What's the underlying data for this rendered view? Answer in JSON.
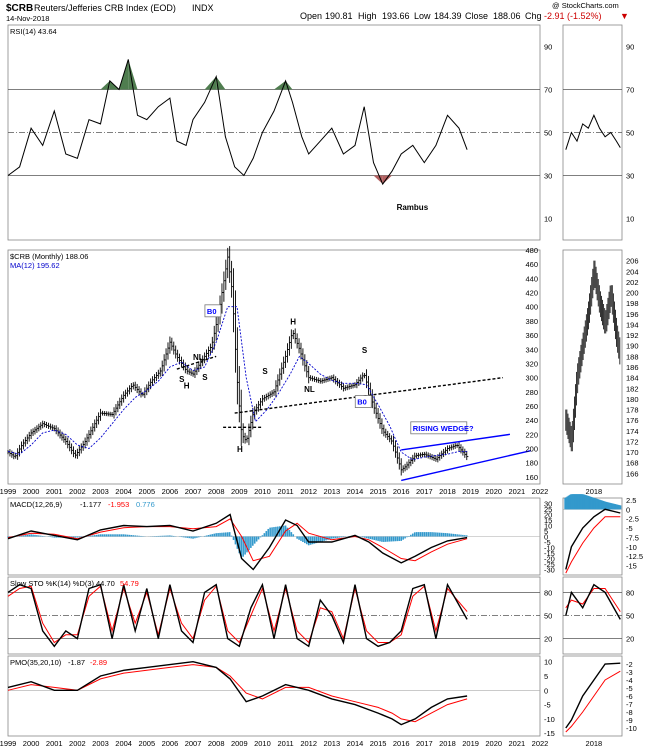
{
  "header": {
    "symbol": "$CRB",
    "name": "Reuters/Jefferies CRB Index (EOD)",
    "exchange": "INDX",
    "date": "14-Nov-2018",
    "open_label": "Open",
    "open": "190.81",
    "high_label": "High",
    "high": "193.66",
    "low_label": "Low",
    "low": "184.39",
    "close_label": "Close",
    "close": "188.06",
    "chg_label": "Chg",
    "chg": "-2.91 (-1.52%)",
    "chg_color": "#cc0000",
    "copyright": "@ StockCharts.com"
  },
  "colors": {
    "price": "#000000",
    "ma": "#0000cc",
    "macd_signal": "#ff0000",
    "histogram": "#3399cc",
    "rsi_overbought_fill": "#4f7d4f",
    "rsi_oversold_fill": "#b25f5f",
    "wedge": "#0000ff",
    "panel_border": "#888888"
  },
  "x_axis_years": [
    "1999",
    "2000",
    "2001",
    "2002",
    "2003",
    "2004",
    "2005",
    "2006",
    "2007",
    "2008",
    "2009",
    "2010",
    "2011",
    "2012",
    "2013",
    "2014",
    "2015",
    "2016",
    "2017",
    "2018",
    "2019",
    "2020",
    "2021",
    "2022"
  ],
  "right_x_axis_years": [
    "2018"
  ],
  "chart_data": [
    {
      "type": "line",
      "panel": "rsi",
      "legend": "RSI(14) 43.64",
      "ylim": [
        0,
        100
      ],
      "y_ticks": [
        10,
        30,
        50,
        70,
        90
      ],
      "reference_lines": [
        30,
        50,
        70
      ],
      "annotation": "Rambus",
      "x": [
        1999.0,
        1999.5,
        2000.0,
        2000.5,
        2001.0,
        2001.5,
        2002.0,
        2002.5,
        2003.0,
        2003.4,
        2003.8,
        2004.2,
        2004.6,
        2005.0,
        2005.5,
        2006.0,
        2006.3,
        2006.7,
        2007.0,
        2007.5,
        2008.0,
        2008.4,
        2008.8,
        2009.2,
        2009.6,
        2010.0,
        2010.5,
        2011.0,
        2011.3,
        2011.7,
        2012.0,
        2012.5,
        2013.0,
        2013.5,
        2014.0,
        2014.4,
        2014.8,
        2015.2,
        2015.6,
        2016.0,
        2016.5,
        2017.0,
        2017.5,
        2018.0,
        2018.5,
        2018.85
      ],
      "y": [
        30,
        34,
        52,
        44,
        60,
        40,
        38,
        56,
        54,
        74,
        70,
        84,
        58,
        56,
        62,
        66,
        46,
        44,
        56,
        64,
        76,
        48,
        34,
        30,
        38,
        50,
        60,
        74,
        64,
        48,
        40,
        46,
        52,
        40,
        44,
        62,
        36,
        26,
        32,
        40,
        44,
        36,
        44,
        58,
        52,
        42
      ]
    },
    {
      "type": "line",
      "panel": "rsi-right",
      "ylim": [
        0,
        100
      ],
      "y_ticks": [
        10,
        30,
        50,
        70,
        90
      ],
      "x": [
        2017.9,
        2018.0,
        2018.1,
        2018.2,
        2018.3,
        2018.4,
        2018.5,
        2018.6,
        2018.7,
        2018.8,
        2018.87
      ],
      "y": [
        42,
        50,
        46,
        54,
        52,
        58,
        52,
        48,
        50,
        46,
        43
      ]
    },
    {
      "type": "line",
      "panel": "price",
      "legend": "$CRB (Monthly) 188.06",
      "ma_legend": "MA(12) 195.62",
      "ylim": [
        150,
        480
      ],
      "y_ticks": [
        160,
        180,
        200,
        220,
        240,
        260,
        280,
        300,
        320,
        340,
        360,
        380,
        400,
        420,
        440,
        460,
        480
      ],
      "x": [
        1999.0,
        1999.3,
        1999.6,
        2000.0,
        2000.5,
        2001.0,
        2001.5,
        2001.9,
        2002.3,
        2002.7,
        2003.0,
        2003.5,
        2004.0,
        2004.4,
        2004.8,
        2005.2,
        2005.6,
        2006.0,
        2006.3,
        2006.7,
        2007.0,
        2007.4,
        2007.8,
        2008.1,
        2008.5,
        2008.7,
        2008.9,
        2009.1,
        2009.3,
        2009.6,
        2010.0,
        2010.5,
        2011.0,
        2011.3,
        2011.6,
        2012.0,
        2012.5,
        2013.0,
        2013.5,
        2014.0,
        2014.4,
        2014.8,
        2015.2,
        2015.6,
        2016.0,
        2016.2,
        2016.6,
        2017.0,
        2017.5,
        2018.0,
        2018.4,
        2018.85
      ],
      "y": [
        195,
        188,
        205,
        222,
        235,
        228,
        210,
        190,
        208,
        232,
        250,
        248,
        275,
        290,
        275,
        295,
        310,
        350,
        330,
        310,
        305,
        325,
        345,
        390,
        470,
        420,
        300,
        220,
        210,
        250,
        270,
        280,
        330,
        365,
        340,
        300,
        295,
        300,
        285,
        290,
        305,
        260,
        225,
        210,
        170,
        175,
        190,
        192,
        185,
        200,
        205,
        188
      ],
      "ma_x": [
        1999.0,
        1999.5,
        2000.0,
        2000.5,
        2001.0,
        2001.5,
        2002.0,
        2002.5,
        2003.0,
        2003.5,
        2004.0,
        2004.5,
        2005.0,
        2005.5,
        2006.0,
        2006.5,
        2007.0,
        2007.5,
        2008.0,
        2008.5,
        2008.9,
        2009.3,
        2009.7,
        2010.2,
        2010.7,
        2011.2,
        2011.6,
        2012.0,
        2012.5,
        2013.0,
        2013.5,
        2014.0,
        2014.5,
        2015.0,
        2015.5,
        2016.0,
        2016.5,
        2017.0,
        2017.5,
        2018.0,
        2018.5,
        2018.85
      ],
      "ma_y": [
        196,
        192,
        205,
        222,
        226,
        220,
        205,
        200,
        215,
        235,
        255,
        272,
        282,
        295,
        315,
        322,
        310,
        315,
        350,
        400,
        400,
        300,
        238,
        255,
        278,
        305,
        330,
        320,
        305,
        296,
        292,
        292,
        290,
        262,
        232,
        195,
        184,
        188,
        190,
        192,
        196,
        196
      ],
      "annotations": [
        {
          "label": "B0",
          "x": 2007.6,
          "y": 390
        },
        {
          "label": "NL",
          "x": 2007.0,
          "y": 325
        },
        {
          "label": "S",
          "x": 2006.4,
          "y": 294
        },
        {
          "label": "H",
          "x": 2006.6,
          "y": 285
        },
        {
          "label": "S",
          "x": 2007.4,
          "y": 297
        },
        {
          "label": "H",
          "x": 2008.9,
          "y": 195
        },
        {
          "label": "S",
          "x": 2010.0,
          "y": 305
        },
        {
          "label": "H",
          "x": 2011.2,
          "y": 375
        },
        {
          "label": "NL",
          "x": 2011.8,
          "y": 280
        },
        {
          "label": "S",
          "x": 2014.3,
          "y": 335
        },
        {
          "label": "B0",
          "x": 2014.1,
          "y": 262
        },
        {
          "label": "RISING WEDGE?",
          "x": 2016.5,
          "y": 225
        }
      ],
      "neckline_1": {
        "x": [
          2006.3,
          2008.0
        ],
        "y": [
          312,
          330
        ]
      },
      "neckline_2": {
        "x": [
          2008.8,
          2020.4
        ],
        "y": [
          250,
          300
        ]
      },
      "support_line": {
        "x": [
          2008.3,
          2010.0
        ],
        "y": [
          230,
          230
        ]
      },
      "wedge_upper": {
        "x": [
          2016.0,
          2020.7
        ],
        "y": [
          198,
          220
        ]
      },
      "wedge_lower": {
        "x": [
          2016.0,
          2021.6
        ],
        "y": [
          155,
          197
        ]
      }
    },
    {
      "type": "line",
      "panel": "price-right",
      "ylim": [
        164,
        208
      ],
      "y_ticks": [
        166,
        168,
        170,
        172,
        174,
        176,
        178,
        180,
        182,
        184,
        186,
        188,
        190,
        192,
        194,
        196,
        198,
        200,
        202,
        204,
        206
      ],
      "x": [
        2017.9,
        2018.0,
        2018.1,
        2018.2,
        2018.3,
        2018.4,
        2018.5,
        2018.6,
        2018.7,
        2018.8,
        2018.87
      ],
      "y": [
        176,
        172,
        184,
        190,
        196,
        204,
        198,
        194,
        200,
        192,
        188
      ]
    },
    {
      "type": "line",
      "panel": "macd",
      "legend_name": "MACD(12,26,9)",
      "legend_macd": "-1.177",
      "legend_signal": "-1.953",
      "legend_hist": "0.776",
      "ylim": [
        -35,
        35
      ],
      "y_ticks": [
        -30,
        -25,
        -20,
        -15,
        -10,
        -5,
        0,
        5,
        10,
        15,
        20,
        25,
        30
      ],
      "x": [
        1999.0,
        2000.0,
        2001.0,
        2002.0,
        2003.0,
        2004.0,
        2005.0,
        2006.0,
        2007.0,
        2008.0,
        2008.6,
        2009.1,
        2009.6,
        2010.3,
        2011.0,
        2011.5,
        2012.0,
        2013.0,
        2014.0,
        2014.6,
        2015.2,
        2016.0,
        2016.6,
        2017.3,
        2018.0,
        2018.85
      ],
      "macd": [
        -2,
        5,
        1,
        -3,
        6,
        10,
        9,
        10,
        5,
        12,
        20,
        -20,
        -30,
        -10,
        15,
        10,
        -5,
        -5,
        1,
        -5,
        -15,
        -24,
        -18,
        -10,
        -4,
        -1
      ],
      "signal": [
        -1,
        3,
        2,
        -2,
        4,
        8,
        9,
        9,
        7,
        9,
        16,
        0,
        -22,
        -18,
        5,
        12,
        3,
        -3,
        0,
        -3,
        -10,
        -20,
        -22,
        -14,
        -7,
        -2
      ],
      "hist": [
        -1,
        2,
        -1,
        -1,
        2,
        2,
        0,
        1,
        -2,
        3,
        4,
        -20,
        -8,
        8,
        10,
        -2,
        -8,
        -2,
        1,
        -2,
        -5,
        -4,
        4,
        4,
        3,
        1
      ]
    },
    {
      "type": "line",
      "panel": "macd-right",
      "ylim": [
        -17.5,
        3
      ],
      "y_ticks": [
        2.5,
        0,
        -2.5,
        -5,
        -7.5,
        -10,
        -12.5,
        -15
      ],
      "x": [
        2017.9,
        2018.0,
        2018.2,
        2018.4,
        2018.6,
        2018.87
      ],
      "macd": [
        -16,
        -10,
        -5,
        -2,
        0,
        -1
      ],
      "signal": [
        -17,
        -14,
        -9,
        -5,
        -2,
        -2
      ],
      "hist": [
        3,
        4,
        4,
        3,
        2,
        1
      ]
    },
    {
      "type": "line",
      "panel": "stochastics",
      "legend_name": "Slow STO %K(14) %D(3)",
      "legend_k": "44.70",
      "legend_d": "54.79",
      "ylim": [
        0,
        100
      ],
      "y_ticks": [
        20,
        50,
        80
      ],
      "reference_lines": [
        20,
        50,
        80
      ],
      "x": [
        1999.0,
        1999.5,
        2000.0,
        2000.5,
        2001.0,
        2001.5,
        2002.0,
        2002.5,
        2003.0,
        2003.5,
        2004.0,
        2004.5,
        2005.0,
        2005.5,
        2006.0,
        2006.5,
        2007.0,
        2007.5,
        2008.0,
        2008.5,
        2009.0,
        2009.5,
        2010.0,
        2010.5,
        2011.0,
        2011.5,
        2012.0,
        2012.5,
        2013.0,
        2013.5,
        2014.0,
        2014.5,
        2015.0,
        2015.5,
        2016.0,
        2016.5,
        2017.0,
        2017.5,
        2018.0,
        2018.85
      ],
      "k": [
        80,
        90,
        85,
        30,
        10,
        30,
        20,
        85,
        90,
        20,
        90,
        30,
        85,
        20,
        90,
        30,
        15,
        80,
        90,
        20,
        10,
        60,
        90,
        20,
        90,
        20,
        10,
        70,
        50,
        15,
        90,
        20,
        10,
        15,
        30,
        85,
        90,
        20,
        90,
        45
      ],
      "d": [
        75,
        85,
        88,
        40,
        15,
        25,
        25,
        75,
        88,
        30,
        85,
        40,
        80,
        25,
        85,
        40,
        20,
        70,
        88,
        30,
        15,
        50,
        85,
        30,
        85,
        30,
        15,
        60,
        55,
        20,
        85,
        30,
        15,
        15,
        25,
        75,
        88,
        30,
        85,
        55
      ]
    },
    {
      "type": "line",
      "panel": "stochastics-right",
      "ylim": [
        0,
        100
      ],
      "y_ticks": [
        20,
        50,
        80
      ],
      "x": [
        2017.9,
        2018.0,
        2018.2,
        2018.4,
        2018.6,
        2018.87
      ],
      "k": [
        50,
        80,
        60,
        90,
        80,
        45
      ],
      "d": [
        60,
        70,
        65,
        85,
        85,
        55
      ]
    },
    {
      "type": "line",
      "panel": "pmo",
      "legend_name": "PMO(35,20,10)",
      "legend_pmo": "-1.87",
      "legend_signal": "-2.89",
      "ylim": [
        -16,
        12
      ],
      "y_ticks": [
        -15,
        -10,
        -5,
        0,
        5,
        10
      ],
      "x": [
        1999.0,
        2000.0,
        2001.0,
        2002.0,
        2003.0,
        2004.0,
        2005.0,
        2006.0,
        2007.0,
        2008.0,
        2008.6,
        2009.3,
        2010.0,
        2011.0,
        2012.0,
        2013.0,
        2014.0,
        2015.0,
        2015.6,
        2016.0,
        2016.6,
        2017.3,
        2018.0,
        2018.85
      ],
      "pmo": [
        1,
        3,
        0,
        0,
        5,
        7,
        8,
        9,
        10,
        8,
        4,
        -4,
        -2,
        2,
        0,
        -3,
        -5,
        -8,
        -10,
        -12,
        -10,
        -6,
        -3,
        -2
      ],
      "signal": [
        0,
        2,
        1,
        0,
        4,
        6,
        7,
        8,
        9,
        8,
        5,
        -1,
        -3,
        1,
        1,
        -2,
        -4,
        -6,
        -8,
        -10,
        -11,
        -8,
        -5,
        -3
      ]
    },
    {
      "type": "line",
      "panel": "pmo-right",
      "ylim": [
        -11,
        -1
      ],
      "y_ticks": [
        -2,
        -3,
        -4,
        -5,
        -6,
        -7,
        -8,
        -9,
        -10
      ],
      "x": [
        2017.9,
        2018.0,
        2018.2,
        2018.4,
        2018.6,
        2018.87
      ],
      "pmo": [
        -10,
        -9,
        -6,
        -4,
        -2,
        -1.9
      ],
      "signal": [
        -10.5,
        -9.8,
        -8,
        -6,
        -4,
        -2.9
      ]
    }
  ]
}
